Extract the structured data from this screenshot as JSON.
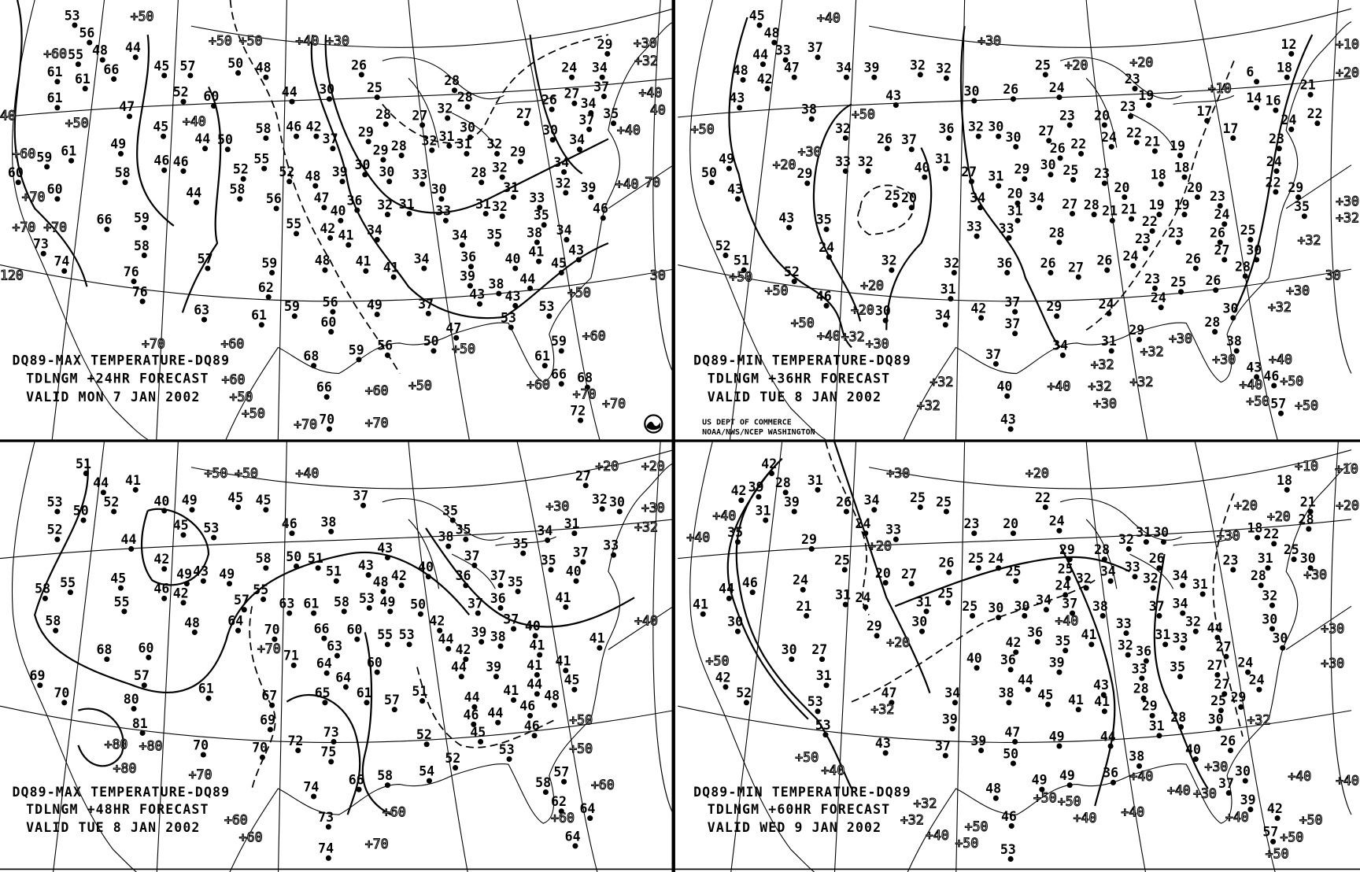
{
  "panels": [
    {
      "caption": [
        "DQ89-MAX TEMPERATURE-DQ89",
        "TDLNGM +24HR FORECAST",
        "VALID MON  7 JAN 2002"
      ],
      "stations": [
        53,
        56,
        48,
        44,
        45,
        57,
        50,
        48,
        55,
        61,
        61,
        66,
        52,
        60,
        61,
        47,
        45,
        44,
        50,
        58,
        46,
        46,
        49,
        58,
        61,
        59,
        60,
        60,
        52,
        55,
        58,
        44,
        59,
        66,
        58,
        57,
        73,
        74,
        76,
        76,
        63,
        61,
        62,
        59,
        52,
        48,
        56,
        55,
        47,
        40,
        42,
        36,
        39,
        37,
        42,
        46,
        44,
        30,
        26,
        25,
        29,
        28,
        30,
        29,
        28,
        30,
        33,
        32,
        31,
        34,
        41,
        41,
        41,
        48,
        59,
        56,
        60,
        49,
        37,
        34,
        39,
        43,
        38,
        43,
        44,
        45,
        40,
        41,
        36,
        34,
        35,
        38,
        34,
        43,
        33,
        31,
        32,
        33,
        35,
        39,
        46,
        30,
        28,
        32,
        31,
        29,
        32,
        31,
        30,
        31,
        32,
        27,
        32,
        28,
        28,
        27,
        26,
        30,
        34,
        34,
        32,
        24,
        29,
        34,
        27,
        37,
        34,
        37,
        35,
        53,
        53,
        50,
        47,
        56,
        59,
        68,
        66,
        70,
        59,
        61,
        66,
        68,
        72
      ],
      "contour_labels": [
        "+50",
        "+50",
        "+50",
        "+40",
        "+30",
        "+32",
        "+30",
        "+40",
        "+40",
        "+40",
        "+60",
        "+50",
        "+60",
        "+70",
        "+70",
        "+70",
        "+40",
        "+60",
        "+60",
        "+50",
        "+50",
        "+70",
        "+60",
        "+50",
        "+50",
        "+50",
        "+60",
        "+60",
        "+70",
        "+70",
        "+70",
        "+70"
      ]
    },
    {
      "caption": [
        "DQ89-MIN TEMPERATURE-DQ89",
        "TDLNGM +36HR FORECAST",
        "VALID TUE  8 JAN 2002"
      ],
      "credit": [
        "US DEPT OF COMMERCE",
        "NOAA/NWS/NCEP WASHINGTON"
      ],
      "stations": [
        45,
        48,
        44,
        33,
        37,
        48,
        42,
        47,
        34,
        39,
        43,
        32,
        32,
        25,
        26,
        30,
        43,
        38,
        32,
        36,
        32,
        30,
        30,
        37,
        26,
        33,
        32,
        29,
        40,
        31,
        27,
        31,
        29,
        30,
        25,
        23,
        26,
        22,
        27,
        23,
        24,
        20,
        24,
        22,
        21,
        23,
        19,
        23,
        17,
        17,
        14,
        6,
        12,
        18,
        16,
        21,
        22,
        24,
        23,
        24,
        22,
        29,
        35,
        19,
        18,
        18,
        19,
        19,
        20,
        23,
        24,
        20,
        21,
        22,
        23,
        23,
        26,
        25,
        27,
        30,
        28,
        26,
        26,
        25,
        24,
        23,
        24,
        20,
        34,
        31,
        33,
        34,
        33,
        27,
        28,
        21,
        20,
        25,
        35,
        43,
        24,
        52,
        46,
        32,
        32,
        36,
        28,
        26,
        27,
        26,
        31,
        34,
        42,
        37,
        37,
        29,
        24,
        30,
        40,
        43,
        37,
        52,
        51,
        50,
        49,
        43,
        38,
        28,
        30,
        34,
        31,
        29,
        43,
        46,
        57
      ],
      "contour_labels": [
        "+40",
        "+30",
        "+20",
        "+20",
        "+10",
        "+10",
        "+20",
        "+50",
        "+50",
        "+30",
        "+20",
        "+50",
        "+50",
        "+50",
        "+40",
        "+32",
        "+30",
        "+20",
        "+20",
        "+32",
        "+32",
        "+40",
        "+32",
        "+32",
        "+32",
        "+30",
        "+30",
        "+32",
        "+40",
        "+40",
        "+50",
        "+50",
        "+50",
        "+30",
        "+32",
        "+30",
        "+32",
        "+32",
        "+30"
      ]
    },
    {
      "caption": [
        "DQ89-MAX TEMPERATURE-DQ89",
        "TDLNGM +48HR FORECAST",
        "VALID TUE  8 JAN 2002"
      ],
      "stations": [
        51,
        44,
        41,
        53,
        50,
        52,
        40,
        49,
        45,
        45,
        52,
        44,
        42,
        45,
        53,
        43,
        49,
        58,
        50,
        51,
        51,
        46,
        38,
        37,
        43,
        43,
        48,
        42,
        40,
        35,
        38,
        35,
        37,
        36,
        37,
        35,
        35,
        40,
        37,
        32,
        33,
        34,
        31,
        27,
        30,
        58,
        55,
        45,
        55,
        46,
        42,
        60,
        57,
        68,
        69,
        58,
        70,
        80,
        81,
        48,
        49,
        57,
        55,
        63,
        61,
        58,
        53,
        49,
        50,
        64,
        70,
        66,
        63,
        60,
        55,
        53,
        42,
        37,
        36,
        35,
        37,
        39,
        38,
        40,
        41,
        44,
        42,
        44,
        39,
        41,
        41,
        41,
        41,
        44,
        45,
        48,
        46,
        71,
        64,
        65,
        64,
        61,
        60,
        57,
        51,
        67,
        69,
        70,
        72,
        73,
        75,
        61,
        70,
        52,
        54,
        52,
        53,
        44,
        46,
        45,
        41,
        44,
        46,
        66,
        58,
        74,
        73,
        74,
        58,
        57,
        62,
        64,
        64
      ],
      "contour_labels": [
        "+50",
        "+50",
        "+40",
        "+20",
        "+20",
        "+30",
        "+30",
        "+32",
        "+40",
        "+50",
        "+50",
        "+60",
        "+60",
        "+80",
        "+80",
        "+80",
        "+70",
        "+60",
        "+60",
        "+60",
        "+70",
        "+70"
      ]
    },
    {
      "caption": [
        "DQ89-MIN TEMPERATURE-DQ89",
        "TDLNGM +60HR FORECAST",
        "VALID WED  9 JAN 2002"
      ],
      "stations": [
        42,
        39,
        28,
        31,
        42,
        31,
        39,
        35,
        26,
        34,
        25,
        25,
        24,
        33,
        23,
        20,
        22,
        24,
        29,
        25,
        20,
        27,
        26,
        25,
        24,
        25,
        29,
        25,
        28,
        32,
        31,
        30,
        26,
        24,
        32,
        34,
        33,
        32,
        34,
        31,
        23,
        31,
        28,
        25,
        30,
        21,
        18,
        18,
        22,
        28,
        24,
        21,
        31,
        24,
        31,
        25,
        30,
        25,
        30,
        30,
        34,
        37,
        38,
        33,
        37,
        34,
        32,
        31,
        33,
        32,
        36,
        35,
        41,
        42,
        36,
        40,
        36,
        39,
        41,
        43,
        44,
        27,
        24,
        24,
        27,
        27,
        25,
        29,
        30,
        28,
        31,
        29,
        33,
        35,
        28,
        30,
        30,
        32,
        29,
        27,
        31,
        30,
        44,
        41,
        46,
        30,
        42,
        52,
        53,
        53,
        47,
        34,
        39,
        38,
        44,
        45,
        41,
        43,
        37,
        39,
        47,
        50,
        49,
        44,
        38,
        36,
        40,
        26,
        30,
        37,
        39,
        42,
        48,
        49,
        49,
        46,
        53,
        57,
        55
      ],
      "contour_labels": [
        "+30",
        "+20",
        "+10",
        "+10",
        "+20",
        "+20",
        "+20",
        "+40",
        "+40",
        "+30",
        "+30",
        "+20",
        "+20",
        "+40",
        "+30",
        "+30",
        "+32",
        "+32",
        "+40",
        "+40",
        "+40",
        "+40",
        "+30",
        "+30",
        "+40",
        "+40",
        "+50",
        "+50",
        "+50",
        "+50",
        "+50",
        "+50",
        "+40",
        "+50",
        "+50",
        "+50",
        "+40",
        "+32",
        "+32",
        "+40"
      ]
    }
  ],
  "grid_labels": [
    "40",
    "30",
    "70",
    "40",
    "120",
    "30"
  ],
  "colors": {
    "background": "#ffffff",
    "ink": "#000000"
  }
}
